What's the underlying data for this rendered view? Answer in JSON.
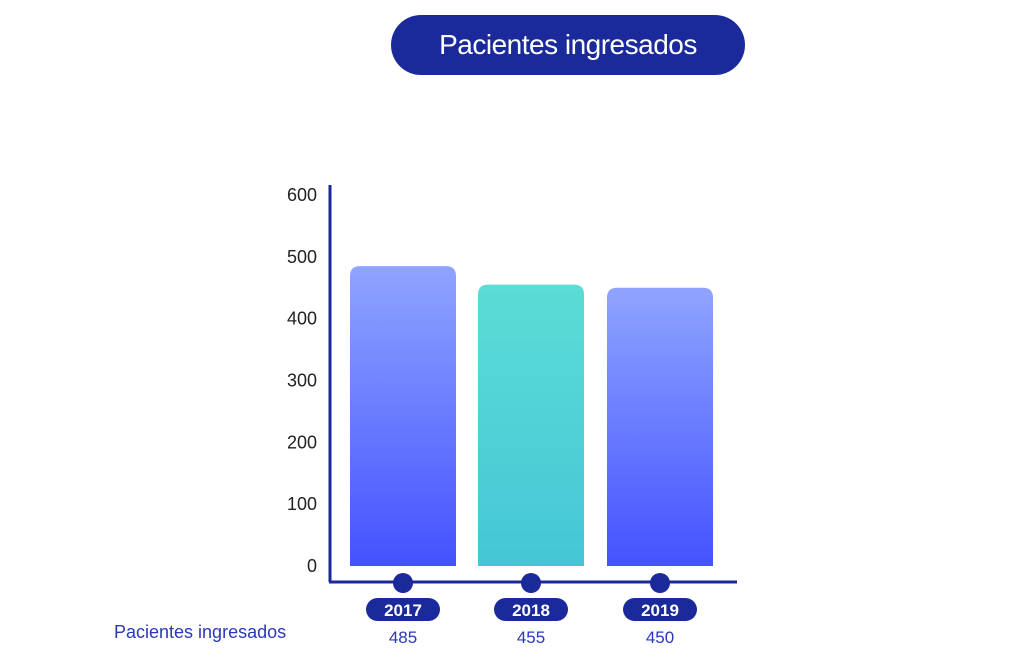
{
  "chart_data": {
    "type": "bar",
    "title": "Pacientes ingresados",
    "categories": [
      "2017",
      "2018",
      "2019"
    ],
    "series": [
      {
        "name": "Pacientes ingresados",
        "values": [
          485,
          455,
          450
        ]
      }
    ],
    "ylim": [
      0,
      600
    ],
    "yticks": [
      0,
      100,
      200,
      300,
      400,
      500,
      600
    ],
    "grid": false,
    "bar_gradients": [
      {
        "top": "#8fa4ff",
        "bottom": "#4452ff"
      },
      {
        "top": "#5cdcd6",
        "bottom": "#45c6d6"
      },
      {
        "top": "#8fa4ff",
        "bottom": "#4452ff"
      }
    ],
    "colors": {
      "accent": "#1b2a9a",
      "axis": "#1b2a9a",
      "value_text": "#2b37b8"
    }
  }
}
